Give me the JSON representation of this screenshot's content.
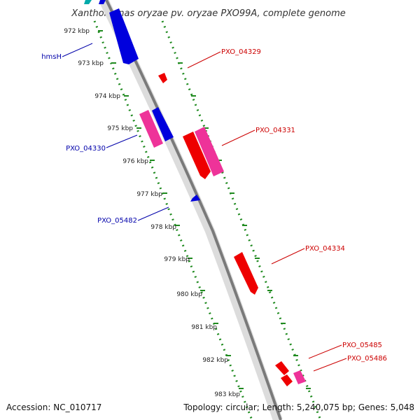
{
  "title": "Xanthomonas oryzae pv. oryzae PXO99A, complete genome",
  "footer": {
    "accession": "Accession: NC_010717",
    "summary": "Topology: circular; Length: 5,240,075 bp; Genes: 5,048"
  },
  "colors": {
    "backbone": "#8c8c8c",
    "tick": "#1f8a1f",
    "forward_label": "#cc0000",
    "reverse_label": "#0000aa",
    "red_feature": "#ee0000",
    "pink_feature": "#ee3399",
    "blue_feature": "#0000dd",
    "cyan_feature": "#00aaaa"
  },
  "ticks": [
    "972 kbp",
    "973 kbp",
    "974 kbp",
    "975 kbp",
    "976 kbp",
    "977 kbp",
    "978 kbp",
    "979 kbp",
    "980 kbp",
    "981 kbp",
    "982 kbp",
    "983 kbp"
  ],
  "labels": {
    "forward": [
      "PXO_04329",
      "PXO_04331",
      "PXO_04334",
      "PXO_05485",
      "PXO_05486"
    ],
    "reverse": [
      "hmsH",
      "PXO_04330",
      "PXO_05482"
    ]
  }
}
